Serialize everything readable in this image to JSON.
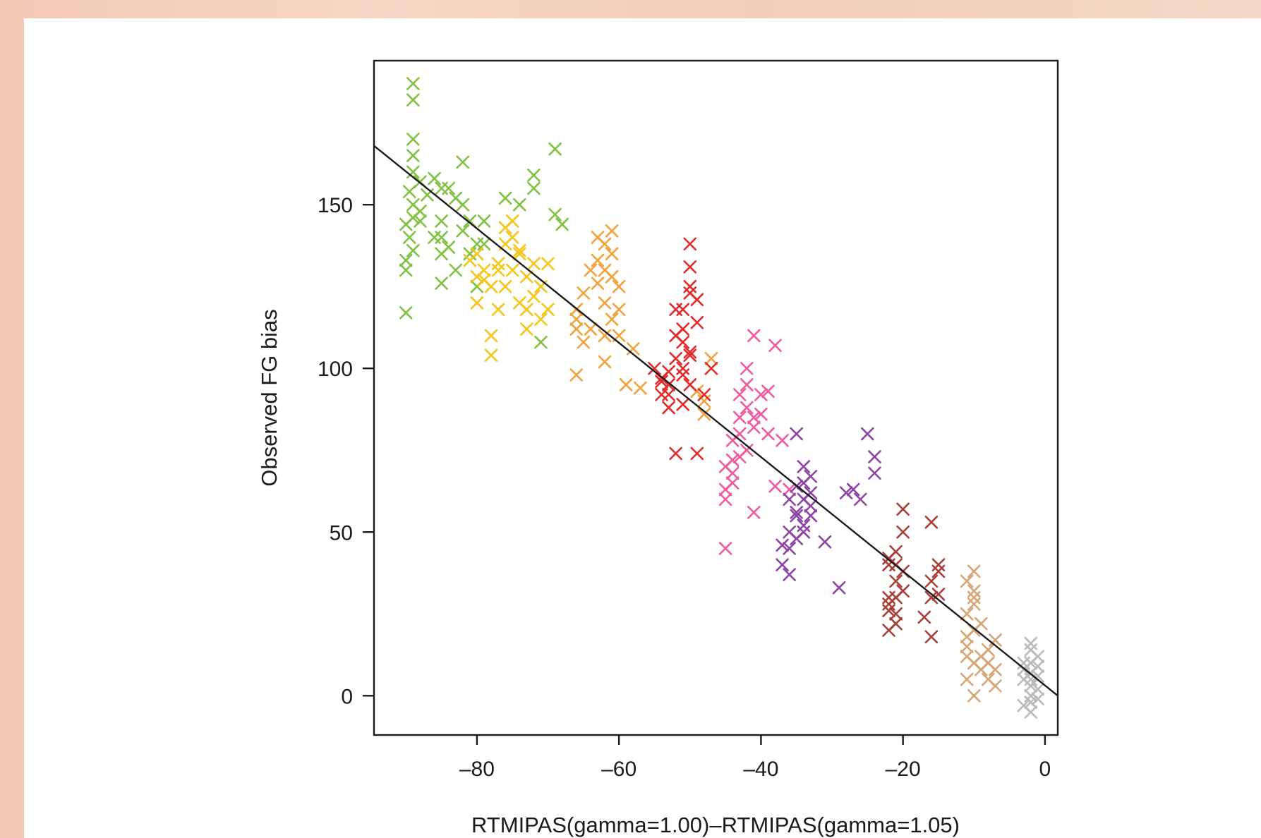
{
  "chart_data": {
    "type": "scatter",
    "title": "",
    "xlabel": "RTMIPAS(gamma=1.00)–RTMIPAS(gamma=1.05)",
    "ylabel": "Observed FG bias",
    "xlim": [
      -94.5,
      1.8
    ],
    "ylim": [
      -12,
      194
    ],
    "x_ticks": [
      -80,
      -60,
      -40,
      -20,
      0
    ],
    "x_tick_labels": [
      "–80",
      "–60",
      "–40",
      "–20",
      "0"
    ],
    "y_ticks": [
      0,
      50,
      100,
      150
    ],
    "y_tick_labels": [
      "0",
      "50",
      "100",
      "150"
    ],
    "marker": "x",
    "grid": false,
    "legend": "none",
    "fit_line": {
      "x": [
        -94.5,
        1.8
      ],
      "y": [
        168,
        0
      ],
      "color": "#1a1a1a"
    },
    "series": [
      {
        "color": "#7fc241",
        "points": [
          [
            -90,
            144
          ],
          [
            -89.5,
            140
          ],
          [
            -89,
            146
          ],
          [
            -90,
            133
          ],
          [
            -89,
            136
          ],
          [
            -88,
            148
          ],
          [
            -89,
            150
          ],
          [
            -90,
            130
          ],
          [
            -89.5,
            154
          ],
          [
            -89,
            160
          ],
          [
            -89,
            165
          ],
          [
            -89,
            170
          ],
          [
            -89,
            182
          ],
          [
            -89,
            187
          ],
          [
            -88,
            157
          ],
          [
            -90,
            117
          ],
          [
            -88,
            145
          ],
          [
            -87,
            153
          ],
          [
            -86,
            158
          ],
          [
            -85,
            155
          ],
          [
            -84,
            155
          ],
          [
            -83,
            152
          ],
          [
            -82,
            150
          ],
          [
            -81,
            145
          ],
          [
            -80,
            138
          ],
          [
            -79,
            145
          ],
          [
            -85,
            145
          ],
          [
            -85,
            140
          ],
          [
            -84,
            137
          ],
          [
            -85,
            135
          ],
          [
            -83,
            130
          ],
          [
            -82,
            142
          ],
          [
            -82,
            163
          ],
          [
            -85,
            126
          ],
          [
            -72,
            159
          ],
          [
            -72,
            155
          ],
          [
            -74,
            150
          ],
          [
            -76,
            152
          ],
          [
            -69,
            167
          ],
          [
            -69,
            147
          ],
          [
            -68,
            144
          ],
          [
            -71,
            108
          ],
          [
            -80,
            125
          ],
          [
            -79,
            138
          ],
          [
            -81,
            135
          ],
          [
            -86,
            140
          ]
        ]
      },
      {
        "color": "#f5c518",
        "points": [
          [
            -80,
            135
          ],
          [
            -79,
            130
          ],
          [
            -80,
            128
          ],
          [
            -78,
            125
          ],
          [
            -77,
            132
          ],
          [
            -76,
            138
          ],
          [
            -75,
            140
          ],
          [
            -75,
            145
          ],
          [
            -74,
            135
          ],
          [
            -73,
            128
          ],
          [
            -76,
            125
          ],
          [
            -77,
            118
          ],
          [
            -78,
            110
          ],
          [
            -78,
            104
          ],
          [
            -74,
            120
          ],
          [
            -72,
            122
          ],
          [
            -71,
            115
          ],
          [
            -71,
            125
          ],
          [
            -73,
            112
          ],
          [
            -70,
            132
          ],
          [
            -72,
            132
          ],
          [
            -77,
            130
          ],
          [
            -75,
            130
          ],
          [
            -80,
            120
          ],
          [
            -79,
            127
          ],
          [
            -70,
            118
          ],
          [
            -76,
            143
          ],
          [
            -74,
            136
          ],
          [
            -81,
            133
          ],
          [
            -73,
            118
          ]
        ]
      },
      {
        "color": "#f1a23a",
        "points": [
          [
            -66,
            118
          ],
          [
            -65,
            123
          ],
          [
            -66,
            112
          ],
          [
            -65,
            108
          ],
          [
            -66,
            98
          ],
          [
            -63,
            140
          ],
          [
            -62,
            138
          ],
          [
            -61,
            142
          ],
          [
            -62,
            130
          ],
          [
            -63,
            126
          ],
          [
            -61,
            135
          ],
          [
            -62,
            120
          ],
          [
            -61,
            115
          ],
          [
            -60,
            110
          ],
          [
            -62,
            102
          ],
          [
            -58,
            106
          ],
          [
            -59,
            95
          ],
          [
            -57,
            94
          ],
          [
            -48,
            90
          ],
          [
            -48,
            86
          ],
          [
            -47,
            103
          ],
          [
            -49,
            93
          ],
          [
            -64,
            130
          ],
          [
            -60,
            125
          ],
          [
            -64,
            112
          ],
          [
            -61,
            128
          ],
          [
            -63,
            133
          ],
          [
            -60,
            118
          ],
          [
            -62,
            110
          ],
          [
            -66,
            115
          ]
        ]
      },
      {
        "color": "#e22a2a",
        "points": [
          [
            -55,
            100
          ],
          [
            -54,
            97
          ],
          [
            -53,
            92
          ],
          [
            -52,
            110
          ],
          [
            -51,
            108
          ],
          [
            -51,
            118
          ],
          [
            -50,
            125
          ],
          [
            -50,
            131
          ],
          [
            -50,
            138
          ],
          [
            -49,
            121
          ],
          [
            -52,
            103
          ],
          [
            -53,
            99
          ],
          [
            -54,
            92
          ],
          [
            -51,
            100
          ],
          [
            -50,
            95
          ],
          [
            -49,
            114
          ],
          [
            -50,
            104
          ],
          [
            -52,
            74
          ],
          [
            -49,
            74
          ],
          [
            -51,
            112
          ],
          [
            -53,
            95
          ],
          [
            -51,
            89
          ],
          [
            -50,
            123
          ],
          [
            -48,
            92
          ],
          [
            -47,
            100
          ],
          [
            -52,
            118
          ],
          [
            -50,
            105
          ],
          [
            -54,
            96
          ],
          [
            -53,
            88
          ],
          [
            -51,
            98
          ]
        ]
      },
      {
        "color": "#ee5ba0",
        "points": [
          [
            -45,
            70
          ],
          [
            -44,
            78
          ],
          [
            -43,
            85
          ],
          [
            -43,
            73
          ],
          [
            -44,
            65
          ],
          [
            -45,
            60
          ],
          [
            -45,
            45
          ],
          [
            -42,
            95
          ],
          [
            -42,
            100
          ],
          [
            -41,
            85
          ],
          [
            -41,
            110
          ],
          [
            -40,
            92
          ],
          [
            -38,
            107
          ],
          [
            -42,
            75
          ],
          [
            -43,
            80
          ],
          [
            -44,
            72
          ],
          [
            -39,
            80
          ],
          [
            -38,
            64
          ],
          [
            -41,
            56
          ],
          [
            -36,
            63
          ],
          [
            -40,
            86
          ],
          [
            -42,
            88
          ],
          [
            -44,
            68
          ],
          [
            -43,
            92
          ],
          [
            -45,
            63
          ],
          [
            -39,
            93
          ],
          [
            -37,
            78
          ],
          [
            -41,
            82
          ]
        ]
      },
      {
        "color": "#8f44a5",
        "points": [
          [
            -36,
            60
          ],
          [
            -35,
            55
          ],
          [
            -34,
            52
          ],
          [
            -34,
            65
          ],
          [
            -35,
            48
          ],
          [
            -36,
            45
          ],
          [
            -37,
            40
          ],
          [
            -36,
            37
          ],
          [
            -33,
            55
          ],
          [
            -34,
            70
          ],
          [
            -35,
            80
          ],
          [
            -33,
            62
          ],
          [
            -34,
            60
          ],
          [
            -29,
            33
          ],
          [
            -28,
            62
          ],
          [
            -27,
            63
          ],
          [
            -26,
            60
          ],
          [
            -25,
            80
          ],
          [
            -24,
            73
          ],
          [
            -24,
            68
          ],
          [
            -31,
            47
          ],
          [
            -35,
            56
          ],
          [
            -33,
            58
          ],
          [
            -36,
            50
          ],
          [
            -37,
            46
          ],
          [
            -34,
            50
          ],
          [
            -35,
            64
          ],
          [
            -33,
            67
          ]
        ]
      },
      {
        "color": "#a8403a",
        "points": [
          [
            -22,
            40
          ],
          [
            -21,
            35
          ],
          [
            -22,
            30
          ],
          [
            -21,
            25
          ],
          [
            -22,
            20
          ],
          [
            -21,
            44
          ],
          [
            -20,
            38
          ],
          [
            -20,
            50
          ],
          [
            -20,
            57
          ],
          [
            -22,
            28
          ],
          [
            -21,
            22
          ],
          [
            -16,
            53
          ],
          [
            -16,
            35
          ],
          [
            -15,
            38
          ],
          [
            -15,
            40
          ],
          [
            -16,
            18
          ],
          [
            -17,
            24
          ],
          [
            -16,
            30
          ],
          [
            -22,
            42
          ],
          [
            -20,
            32
          ],
          [
            -21,
            30
          ],
          [
            -22,
            26
          ],
          [
            -15,
            31
          ],
          [
            -21,
            40
          ]
        ]
      },
      {
        "color": "#d6a574",
        "points": [
          [
            -11,
            35
          ],
          [
            -10,
            30
          ],
          [
            -11,
            25
          ],
          [
            -10,
            20
          ],
          [
            -11,
            15
          ],
          [
            -10,
            10
          ],
          [
            -11,
            5
          ],
          [
            -10,
            0
          ],
          [
            -10,
            38
          ],
          [
            -9,
            12
          ],
          [
            -8,
            10
          ],
          [
            -7,
            17
          ],
          [
            -8,
            5
          ],
          [
            -7,
            3
          ],
          [
            -9,
            22
          ],
          [
            -10,
            28
          ],
          [
            -11,
            18
          ],
          [
            -8,
            14
          ],
          [
            -9,
            8
          ],
          [
            -10,
            32
          ],
          [
            -11,
            12
          ],
          [
            -7,
            8
          ]
        ]
      },
      {
        "color": "#bababa",
        "points": [
          [
            -2,
            14
          ],
          [
            -2,
            10
          ],
          [
            -3,
            8
          ],
          [
            -2,
            5
          ],
          [
            -2,
            0
          ],
          [
            -3,
            -3
          ],
          [
            -1,
            12
          ],
          [
            -2,
            16
          ],
          [
            -2,
            -5
          ],
          [
            -1,
            2
          ],
          [
            -3,
            5
          ],
          [
            -2,
            7
          ],
          [
            -1,
            -1
          ],
          [
            -2,
            3
          ],
          [
            -3,
            10
          ],
          [
            -1,
            6
          ],
          [
            -2,
            -2
          ],
          [
            -1,
            9
          ]
        ]
      }
    ]
  }
}
